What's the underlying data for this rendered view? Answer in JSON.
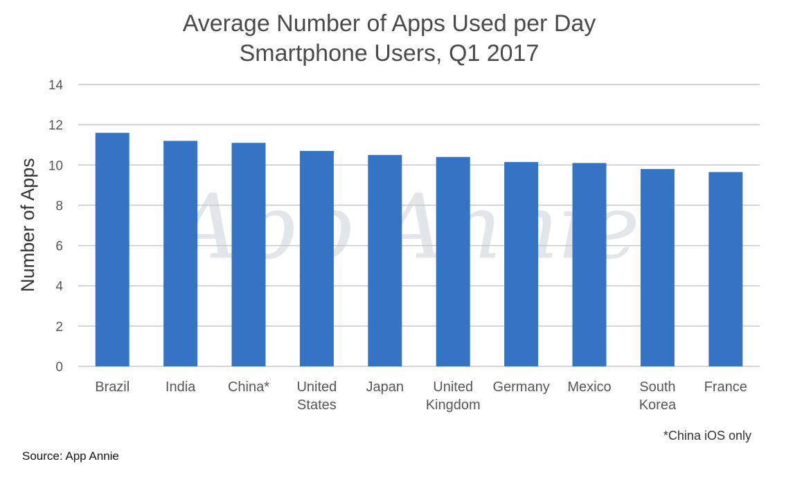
{
  "chart_data": {
    "type": "bar",
    "title": [
      "Average Number of Apps Used per Day",
      "Smartphone Users, Q1 2017"
    ],
    "xlabel": "",
    "ylabel": "Number of Apps",
    "ylim": [
      0,
      14
    ],
    "yticks": [
      0,
      2,
      4,
      6,
      8,
      10,
      12,
      14
    ],
    "grid": true,
    "categories": [
      [
        "Brazil"
      ],
      [
        "India"
      ],
      [
        "China*"
      ],
      [
        "United",
        "States"
      ],
      [
        "Japan"
      ],
      [
        "United",
        "Kingdom"
      ],
      [
        "Germany"
      ],
      [
        "Mexico"
      ],
      [
        "South",
        "Korea"
      ],
      [
        "France"
      ]
    ],
    "values": [
      11.6,
      11.2,
      11.1,
      10.7,
      10.5,
      10.4,
      10.15,
      10.1,
      9.8,
      9.65
    ],
    "bar_color": "#3574c4",
    "grid_color": "#c8c8c8",
    "watermark": "App Annie",
    "footnote": "*China iOS only"
  },
  "source": "Source: App Annie"
}
